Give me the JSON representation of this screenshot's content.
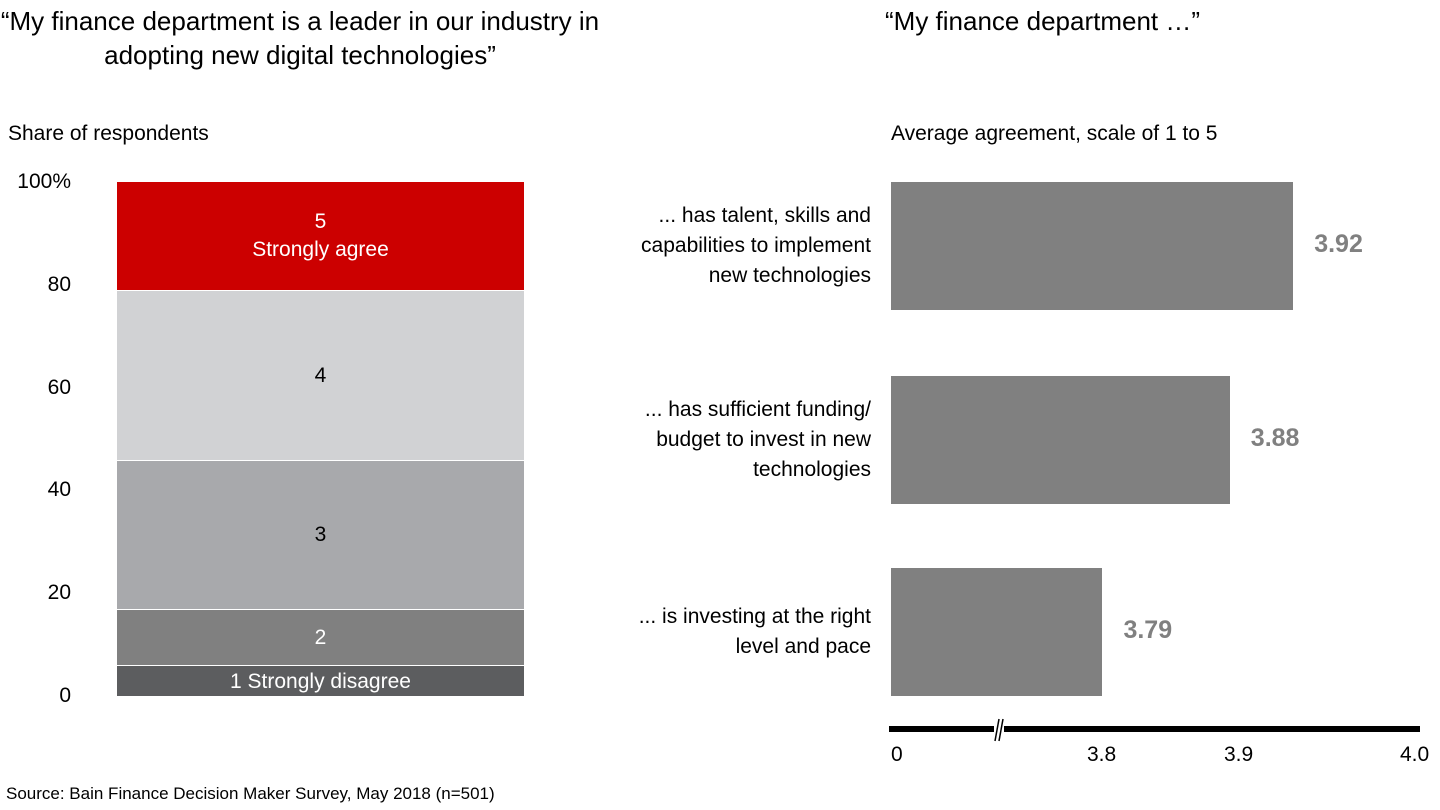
{
  "chart_data": [
    {
      "type": "bar",
      "stacked": true,
      "title": "“My finance department is a leader in our industry in adopting new digital technologies”",
      "ylabel": "Share of respondents",
      "ylim": [
        0,
        100
      ],
      "yticks": [
        "0",
        "20",
        "40",
        "60",
        "80",
        "100%"
      ],
      "ytick_values": [
        0,
        20,
        40,
        60,
        80,
        100
      ],
      "series": [
        {
          "name": "1 Strongly disagree",
          "label": "1 Strongly disagree",
          "value": 6,
          "color": "#5c5d5f",
          "text_color": "#ffffff"
        },
        {
          "name": "2",
          "label": "2",
          "value": 11,
          "color": "#808080",
          "text_color": "#ffffff"
        },
        {
          "name": "3",
          "label": "3",
          "value": 29,
          "color": "#a8a9ac",
          "text_color": "#000000"
        },
        {
          "name": "4",
          "label": "4",
          "value": 33,
          "color": "#d1d2d4",
          "text_color": "#000000"
        },
        {
          "name": "5 Strongly agree",
          "label": "5",
          "label2": "Strongly agree",
          "value": 21,
          "color": "#cc0000",
          "text_color": "#ffffff"
        }
      ]
    },
    {
      "type": "bar",
      "orientation": "horizontal",
      "title": "“My finance department …”",
      "xlabel": "Average agreement, scale of 1 to 5",
      "axis_break": true,
      "xticks": [
        "0",
        "3.8",
        "3.9",
        "4.0"
      ],
      "xtick_values": [
        0,
        3.8,
        3.9,
        4.0
      ],
      "xlim": [
        0,
        4.0
      ],
      "bar_color": "#808080",
      "categories": [
        [
          "... has talent, skills and",
          "capabilities to implement",
          "new technologies"
        ],
        [
          "... has sufficient funding/",
          "budget to invest in new",
          "technologies"
        ],
        [
          "... is investing at the right",
          "level and pace"
        ]
      ],
      "values": [
        3.92,
        3.88,
        3.79
      ],
      "value_labels": [
        "3.92",
        "3.88",
        "3.79"
      ]
    }
  ],
  "source": "Source: Bain Finance Decision Maker Survey, May 2018 (n=501)"
}
